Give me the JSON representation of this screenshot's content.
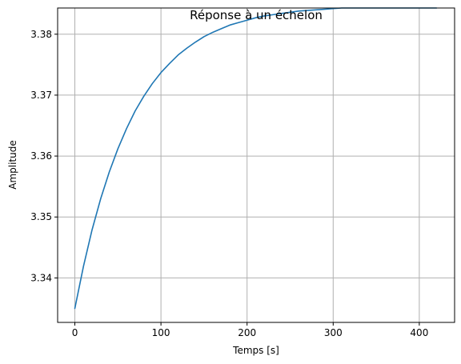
{
  "chart_data": {
    "type": "line",
    "title": "Réponse à un échelon",
    "xlabel": "Temps [s]",
    "ylabel": "Amplitude",
    "xlim": [
      -20,
      441
    ],
    "ylim": [
      3.3327,
      3.3843
    ],
    "xticks": [
      0,
      100,
      200,
      300,
      400
    ],
    "xtick_labels": [
      "0",
      "100",
      "200",
      "300",
      "400"
    ],
    "yticks": [
      3.34,
      3.35,
      3.36,
      3.37,
      3.38
    ],
    "ytick_labels": [
      "3.34",
      "3.35",
      "3.36",
      "3.37",
      "3.38"
    ],
    "grid": true,
    "legend": null,
    "series": [
      {
        "color": "#1f77b4",
        "x": [
          0,
          10,
          20,
          30,
          40,
          50,
          60,
          70,
          80,
          90,
          100,
          110,
          120,
          130,
          140,
          150,
          160,
          170,
          180,
          190,
          200,
          210,
          220,
          230,
          240,
          250,
          260,
          270,
          280,
          290,
          300,
          310,
          320,
          330,
          340,
          350,
          360,
          370,
          380,
          390,
          400,
          410,
          420
        ],
        "y": [
          3.335,
          3.3419,
          3.3479,
          3.353,
          3.3574,
          3.3612,
          3.3645,
          3.3674,
          3.3698,
          3.3719,
          3.3737,
          3.3752,
          3.3766,
          3.3777,
          3.3787,
          3.3796,
          3.3803,
          3.3809,
          3.3815,
          3.3819,
          3.3823,
          3.3827,
          3.383,
          3.3832,
          3.3834,
          3.3836,
          3.3838,
          3.3839,
          3.384,
          3.3841,
          3.3842,
          3.3843,
          3.3843,
          3.3843,
          3.3843,
          3.3843,
          3.3843,
          3.3843,
          3.3843,
          3.3843,
          3.3843,
          3.3843,
          3.3843
        ]
      }
    ]
  }
}
